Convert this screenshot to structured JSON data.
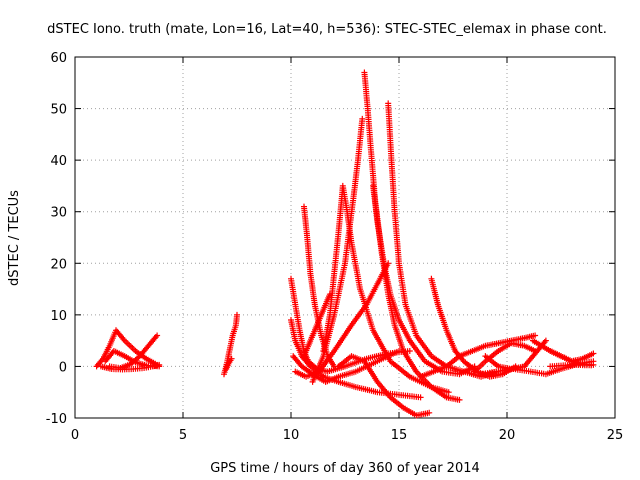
{
  "chart_data": {
    "type": "scatter",
    "title": "dSTEC Iono. truth (mate, Lon=16, Lat=40, h=536): STEC-STEC_elemax in phase cont.",
    "xlabel": "GPS time / hours of day 360 of year 2014",
    "ylabel": "dSTEC  / TECUs",
    "xlim": [
      0,
      25
    ],
    "ylim": [
      -10,
      60
    ],
    "xticks": [
      0,
      5,
      10,
      15,
      20,
      25
    ],
    "yticks": [
      -10,
      0,
      10,
      20,
      30,
      40,
      50,
      60
    ],
    "xtick_labels": [
      "0",
      "5",
      "10",
      "15",
      "20",
      "25"
    ],
    "ytick_labels": [
      "-10",
      "0",
      "10",
      "20",
      "30",
      "40",
      "50",
      "60"
    ],
    "grid": true,
    "legend": "none",
    "marker": "plus",
    "color": "#ff0000",
    "series": [
      {
        "points": [
          [
            1.0,
            0
          ],
          [
            1.3,
            1.5
          ],
          [
            1.6,
            4
          ],
          [
            1.9,
            7
          ],
          [
            2.3,
            5
          ],
          [
            2.8,
            3
          ],
          [
            3.3,
            1.5
          ],
          [
            3.8,
            0.3
          ]
        ]
      },
      {
        "points": [
          [
            1.2,
            0
          ],
          [
            1.7,
            -0.5
          ],
          [
            2.2,
            -0.6
          ],
          [
            2.7,
            -0.5
          ],
          [
            3.2,
            -0.3
          ],
          [
            3.6,
            0
          ],
          [
            3.9,
            0.3
          ]
        ]
      },
      {
        "points": [
          [
            1.6,
            0
          ],
          [
            2.1,
            -0.3
          ],
          [
            2.6,
            0.5
          ],
          [
            3.0,
            2
          ],
          [
            3.4,
            4
          ],
          [
            3.8,
            6
          ]
        ]
      },
      {
        "points": [
          [
            1.4,
            1
          ],
          [
            1.8,
            3
          ],
          [
            2.3,
            2
          ],
          [
            2.8,
            0.8
          ],
          [
            3.3,
            0.2
          ],
          [
            3.9,
            0
          ]
        ]
      },
      {
        "points": [
          [
            6.9,
            -1.5
          ],
          [
            7.0,
            0
          ],
          [
            7.1,
            2
          ],
          [
            7.2,
            4
          ],
          [
            7.3,
            6
          ],
          [
            7.45,
            8
          ],
          [
            7.5,
            10
          ]
        ]
      },
      {
        "points": [
          [
            7.0,
            -0.5
          ],
          [
            7.1,
            0.5
          ],
          [
            7.25,
            1.5
          ]
        ]
      },
      {
        "points": [
          [
            10.0,
            17
          ],
          [
            10.2,
            12
          ],
          [
            10.4,
            7
          ],
          [
            10.6,
            3
          ],
          [
            10.8,
            1
          ],
          [
            11.2,
            -0.5
          ],
          [
            11.7,
            -1
          ],
          [
            12.5,
            0
          ],
          [
            13.5,
            1.5
          ],
          [
            14.5,
            2.5
          ],
          [
            15.5,
            3
          ]
        ]
      },
      {
        "points": [
          [
            10.0,
            9
          ],
          [
            10.2,
            5
          ],
          [
            10.5,
            2
          ],
          [
            10.9,
            0
          ],
          [
            11.5,
            -2
          ],
          [
            12.2,
            -3
          ],
          [
            13.0,
            -4
          ],
          [
            14.0,
            -5
          ],
          [
            15.0,
            -5.5
          ],
          [
            16.0,
            -6
          ]
        ]
      },
      {
        "points": [
          [
            10.1,
            2
          ],
          [
            10.5,
            0
          ],
          [
            11.0,
            -1.5
          ],
          [
            11.6,
            -3
          ],
          [
            12.2,
            -2
          ],
          [
            13.0,
            -1
          ],
          [
            14.0,
            1
          ],
          [
            15.0,
            3
          ]
        ]
      },
      {
        "points": [
          [
            10.2,
            -1
          ],
          [
            10.7,
            -2
          ],
          [
            11.3,
            -1
          ],
          [
            12.0,
            3
          ],
          [
            12.8,
            8
          ],
          [
            13.5,
            12
          ],
          [
            14.0,
            16
          ],
          [
            14.5,
            20
          ]
        ]
      },
      {
        "points": [
          [
            10.6,
            31
          ],
          [
            10.75,
            25
          ],
          [
            10.9,
            18
          ],
          [
            11.1,
            12
          ],
          [
            11.4,
            6
          ],
          [
            11.7,
            2
          ],
          [
            12.0,
            0
          ]
        ]
      },
      {
        "points": [
          [
            10.6,
            2
          ],
          [
            11.0,
            6
          ],
          [
            11.4,
            10
          ],
          [
            11.8,
            14
          ]
        ]
      },
      {
        "points": [
          [
            11.5,
            3
          ],
          [
            11.8,
            10
          ],
          [
            12.0,
            18
          ],
          [
            12.2,
            26
          ],
          [
            12.4,
            35
          ],
          [
            12.6,
            30
          ],
          [
            12.8,
            24
          ],
          [
            13.2,
            15
          ],
          [
            13.8,
            7
          ],
          [
            14.6,
            1
          ],
          [
            15.5,
            -2
          ],
          [
            16.5,
            -4
          ],
          [
            17.3,
            -5
          ]
        ]
      },
      {
        "points": [
          [
            11.0,
            -3
          ],
          [
            11.5,
            2
          ],
          [
            12.0,
            10
          ],
          [
            12.5,
            20
          ],
          [
            12.9,
            33
          ],
          [
            13.1,
            40
          ],
          [
            13.3,
            48
          ]
        ]
      },
      {
        "points": [
          [
            13.4,
            57
          ],
          [
            13.55,
            50
          ],
          [
            13.7,
            42
          ],
          [
            13.9,
            32
          ],
          [
            14.2,
            22
          ],
          [
            14.5,
            14
          ],
          [
            14.8,
            8
          ],
          [
            15.2,
            3
          ],
          [
            15.8,
            -1
          ],
          [
            16.5,
            -4
          ],
          [
            17.2,
            -6
          ],
          [
            17.8,
            -6.5
          ]
        ]
      },
      {
        "points": [
          [
            12.2,
            0
          ],
          [
            12.8,
            2
          ],
          [
            13.4,
            1
          ],
          [
            14.0,
            -3
          ],
          [
            14.6,
            -6
          ],
          [
            15.2,
            -8
          ],
          [
            15.8,
            -9.5
          ],
          [
            16.4,
            -9
          ]
        ]
      },
      {
        "points": [
          [
            13.8,
            35
          ],
          [
            14.0,
            28
          ],
          [
            14.3,
            20
          ],
          [
            14.6,
            14
          ],
          [
            15.0,
            9
          ],
          [
            15.5,
            5
          ],
          [
            16.2,
            1
          ],
          [
            17.0,
            -1
          ],
          [
            17.8,
            -1.5
          ],
          [
            18.5,
            0
          ]
        ]
      },
      {
        "points": [
          [
            14.5,
            51
          ],
          [
            14.65,
            40
          ],
          [
            14.8,
            30
          ],
          [
            15.0,
            20
          ],
          [
            15.3,
            12
          ],
          [
            15.8,
            6
          ],
          [
            16.5,
            2
          ],
          [
            17.2,
            0
          ],
          [
            18.0,
            -1
          ],
          [
            18.8,
            -2
          ],
          [
            19.5,
            -1
          ]
        ]
      },
      {
        "points": [
          [
            16.5,
            17
          ],
          [
            16.8,
            12
          ],
          [
            17.2,
            7
          ],
          [
            17.6,
            3
          ],
          [
            18.0,
            1
          ],
          [
            18.6,
            -1
          ],
          [
            19.2,
            -2
          ],
          [
            19.8,
            -1.5
          ],
          [
            20.4,
            0
          ]
        ]
      },
      {
        "points": [
          [
            16.0,
            -2
          ],
          [
            16.6,
            -1
          ],
          [
            17.2,
            0
          ],
          [
            17.8,
            2
          ],
          [
            18.4,
            3
          ],
          [
            19.0,
            4
          ],
          [
            19.6,
            4.5
          ],
          [
            20.2,
            5
          ],
          [
            20.8,
            5.5
          ],
          [
            21.3,
            6
          ]
        ]
      },
      {
        "points": [
          [
            18.5,
            -1
          ],
          [
            19.0,
            1
          ],
          [
            19.6,
            3
          ],
          [
            20.2,
            4.5
          ],
          [
            20.8,
            4
          ],
          [
            21.3,
            3
          ]
        ]
      },
      {
        "points": [
          [
            19.0,
            2
          ],
          [
            19.6,
            0
          ],
          [
            20.2,
            -0.5
          ],
          [
            20.8,
            0
          ],
          [
            21.4,
            3
          ],
          [
            21.8,
            5
          ]
        ]
      },
      {
        "points": [
          [
            18.8,
            -1.5
          ],
          [
            19.5,
            -1
          ],
          [
            20.3,
            -0.5
          ],
          [
            21.1,
            -1
          ],
          [
            21.8,
            -1.5
          ],
          [
            22.5,
            -0.5
          ],
          [
            23.3,
            0.5
          ],
          [
            24.0,
            1
          ]
        ]
      },
      {
        "points": [
          [
            21.2,
            5
          ],
          [
            21.6,
            4
          ],
          [
            22.0,
            3
          ],
          [
            22.5,
            2
          ],
          [
            23.0,
            1
          ],
          [
            23.5,
            0.5
          ],
          [
            24.0,
            0.3
          ]
        ]
      },
      {
        "points": [
          [
            22.0,
            3
          ],
          [
            22.5,
            2
          ],
          [
            23.0,
            1
          ],
          [
            23.5,
            1.5
          ],
          [
            24.0,
            2.5
          ]
        ]
      },
      {
        "points": [
          [
            22.0,
            0
          ],
          [
            22.6,
            0.2
          ],
          [
            23.2,
            0.3
          ],
          [
            23.9,
            0.2
          ]
        ]
      }
    ]
  }
}
